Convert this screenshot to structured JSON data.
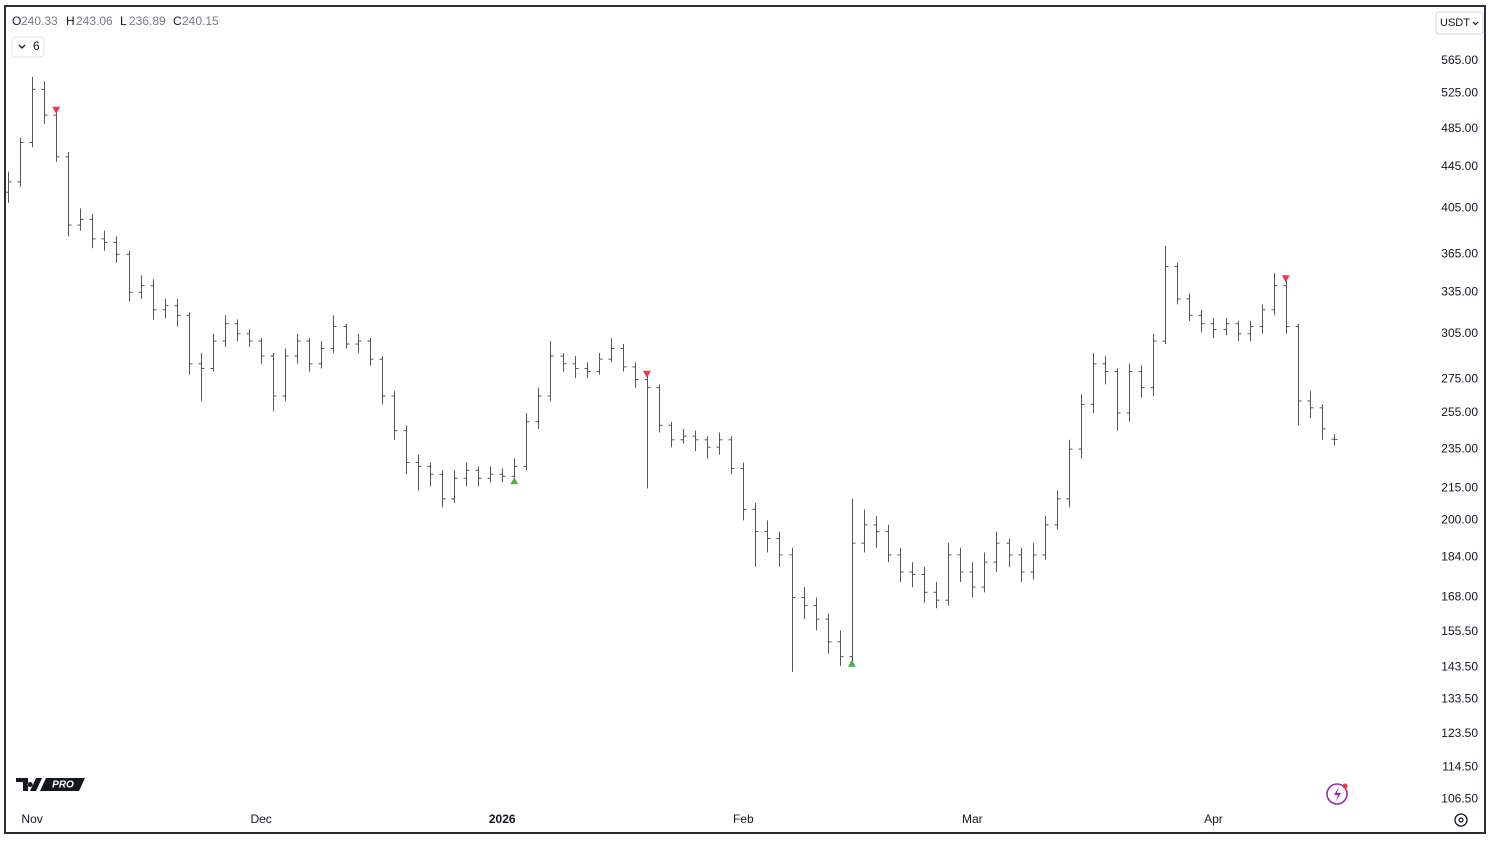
{
  "chart_data": {
    "type": "ohlc",
    "ohlc_labels": [
      "O",
      "H",
      "L",
      "C"
    ],
    "indicator_count": 6,
    "currency": "USDT",
    "logo_text": "PRO",
    "log_scale": true,
    "grid": false,
    "color": "#555555",
    "sell_color": "#f23645",
    "buy_color": "#4caf50",
    "categories": [
      null,
      null,
      "Nov",
      null,
      null,
      null,
      null,
      null,
      null,
      null,
      null,
      null,
      null,
      null,
      null,
      null,
      null,
      null,
      null,
      null,
      null,
      "Dec",
      null,
      null,
      null,
      null,
      null,
      null,
      null,
      null,
      null,
      null,
      null,
      null,
      null,
      null,
      null,
      null,
      null,
      null,
      null,
      "2026",
      null,
      null,
      null,
      null,
      null,
      null,
      null,
      null,
      null,
      null,
      null,
      null,
      null,
      null,
      null,
      null,
      null,
      null,
      null,
      "Feb",
      null,
      null,
      null,
      null,
      null,
      null,
      null,
      null,
      null,
      null,
      null,
      null,
      null,
      null,
      null,
      null,
      null,
      null,
      "Mar",
      null,
      null,
      null,
      null,
      null,
      null,
      null,
      null,
      null,
      null,
      null,
      null,
      null,
      null,
      null,
      null,
      null,
      null,
      null,
      "Apr",
      null,
      null,
      null,
      null,
      null,
      null,
      null,
      null,
      null,
      null
    ],
    "open": [
      420,
      430,
      470,
      530,
      500,
      455,
      390,
      395,
      378,
      375,
      365,
      335,
      340,
      322,
      325,
      318,
      285,
      282,
      300,
      312,
      305,
      300,
      290,
      265,
      290,
      300,
      285,
      295,
      310,
      298,
      300,
      288,
      265,
      245,
      228,
      226,
      222,
      210,
      220,
      224,
      220,
      222,
      221,
      226,
      250,
      265,
      290,
      285,
      282,
      280,
      288,
      295,
      283,
      275,
      270,
      248,
      240,
      242,
      240,
      236,
      240,
      225,
      205,
      195,
      192,
      185,
      168,
      165,
      160,
      152,
      147,
      190,
      198,
      195,
      185,
      178,
      177,
      170,
      167,
      185,
      178,
      172,
      182,
      190,
      185,
      178,
      185,
      198,
      210,
      235,
      260,
      285,
      280,
      255,
      280,
      270,
      300,
      355,
      330,
      318,
      312,
      308,
      312,
      305,
      310,
      322,
      340,
      310,
      262,
      258,
      240.33
    ],
    "high": [
      440,
      475,
      545,
      540,
      505,
      460,
      405,
      400,
      385,
      380,
      368,
      348,
      345,
      330,
      330,
      320,
      292,
      305,
      318,
      315,
      308,
      302,
      292,
      295,
      305,
      302,
      300,
      318,
      312,
      305,
      302,
      290,
      268,
      248,
      232,
      228,
      224,
      224,
      228,
      226,
      226,
      225,
      230,
      255,
      270,
      300,
      292,
      290,
      286,
      292,
      302,
      298,
      286,
      278,
      272,
      250,
      246,
      245,
      242,
      244,
      242,
      228,
      208,
      200,
      195,
      188,
      172,
      168,
      162,
      156,
      210,
      205,
      202,
      198,
      188,
      182,
      180,
      174,
      190,
      188,
      182,
      186,
      195,
      192,
      188,
      190,
      202,
      214,
      240,
      266,
      292,
      290,
      282,
      285,
      284,
      305,
      372,
      358,
      334,
      322,
      316,
      316,
      314,
      314,
      326,
      350,
      345,
      312,
      268,
      260,
      243.06
    ],
    "low": [
      410,
      425,
      465,
      490,
      450,
      380,
      385,
      370,
      368,
      358,
      328,
      330,
      315,
      316,
      310,
      278,
      262,
      280,
      296,
      300,
      296,
      285,
      256,
      262,
      285,
      280,
      282,
      292,
      295,
      292,
      284,
      260,
      240,
      222,
      214,
      216,
      206,
      208,
      216,
      216,
      218,
      218,
      219,
      224,
      246,
      262,
      280,
      276,
      276,
      278,
      286,
      280,
      270,
      215,
      244,
      236,
      238,
      234,
      230,
      232,
      222,
      200,
      180,
      186,
      180,
      142,
      160,
      156,
      148,
      144,
      145,
      186,
      188,
      182,
      174,
      172,
      166,
      164,
      165,
      174,
      168,
      170,
      178,
      180,
      174,
      175,
      183,
      196,
      206,
      230,
      255,
      272,
      245,
      250,
      264,
      265,
      298,
      326,
      314,
      306,
      302,
      304,
      300,
      300,
      305,
      318,
      305,
      248,
      252,
      240,
      236.89
    ],
    "close": [
      430,
      470,
      530,
      500,
      455,
      390,
      395,
      378,
      375,
      365,
      335,
      340,
      322,
      325,
      318,
      285,
      282,
      300,
      312,
      305,
      300,
      290,
      265,
      290,
      300,
      285,
      295,
      310,
      298,
      300,
      288,
      265,
      245,
      228,
      226,
      222,
      210,
      220,
      224,
      220,
      222,
      221,
      226,
      250,
      265,
      290,
      285,
      282,
      280,
      288,
      295,
      283,
      275,
      270,
      248,
      240,
      242,
      240,
      236,
      240,
      225,
      205,
      195,
      192,
      185,
      168,
      165,
      160,
      152,
      147,
      190,
      198,
      195,
      185,
      178,
      177,
      170,
      167,
      185,
      178,
      172,
      182,
      190,
      185,
      178,
      185,
      198,
      210,
      235,
      260,
      285,
      280,
      255,
      280,
      270,
      300,
      355,
      330,
      318,
      312,
      308,
      312,
      305,
      310,
      322,
      340,
      310,
      262,
      258,
      246,
      240.15
    ],
    "sell_signals": [
      4,
      53,
      106
    ],
    "buy_signals": [
      42,
      70
    ],
    "ylim": [
      104.4,
      637
    ],
    "yticks": [
      {
        "value": 565,
        "label": "565.00"
      },
      {
        "value": 525,
        "label": "525.00"
      },
      {
        "value": 485,
        "label": "485.00"
      },
      {
        "value": 445,
        "label": "445.00"
      },
      {
        "value": 405,
        "label": "405.00"
      },
      {
        "value": 365,
        "label": "365.00"
      },
      {
        "value": 335,
        "label": "335.00"
      },
      {
        "value": 305,
        "label": "305.00"
      },
      {
        "value": 275,
        "label": "275.00"
      },
      {
        "value": 255,
        "label": "255.00"
      },
      {
        "value": 235,
        "label": "235.00"
      },
      {
        "value": 215,
        "label": "215.00"
      },
      {
        "value": 200,
        "label": "200.00"
      },
      {
        "value": 184,
        "label": "184.00"
      },
      {
        "value": 168,
        "label": "168.00"
      },
      {
        "value": 155.5,
        "label": "155.50"
      },
      {
        "value": 143.5,
        "label": "143.50"
      },
      {
        "value": 133.5,
        "label": "133.50"
      },
      {
        "value": 123.5,
        "label": "123.50"
      },
      {
        "value": 114.5,
        "label": "114.50"
      },
      {
        "value": 106.5,
        "label": "106.50"
      }
    ]
  }
}
